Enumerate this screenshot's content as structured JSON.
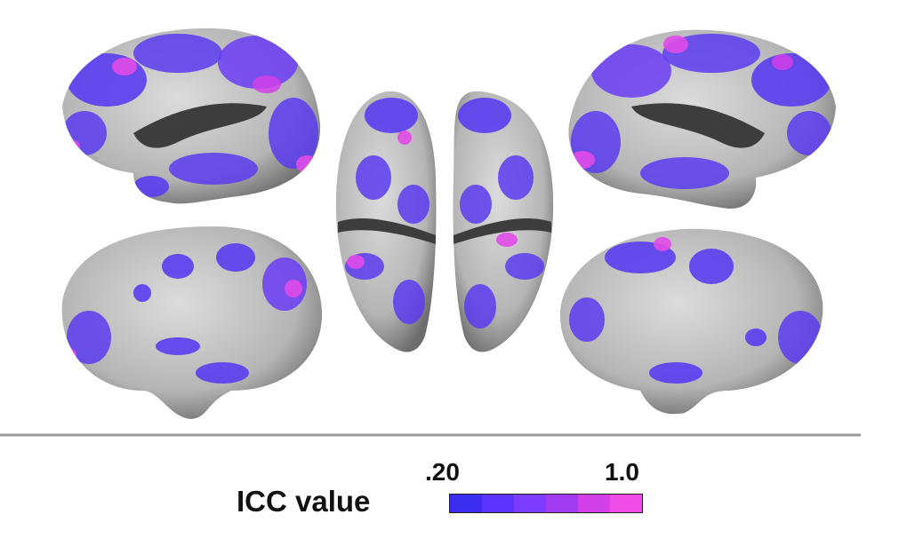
{
  "legend": {
    "title": "ICC value",
    "min_label": ".20",
    "max_label": "1.0",
    "colors": [
      "#3a2df0",
      "#5a33ff",
      "#7b3cff",
      "#a23cf2",
      "#d240e9",
      "#ef4ce8"
    ]
  },
  "palette": {
    "cortex_light": "#d2d2d2",
    "cortex_dark": "#6d6d6d",
    "overlay_blue": "#5a3cf0",
    "overlay_magenta": "#e04be8",
    "divider": "#9a9a9a"
  }
}
